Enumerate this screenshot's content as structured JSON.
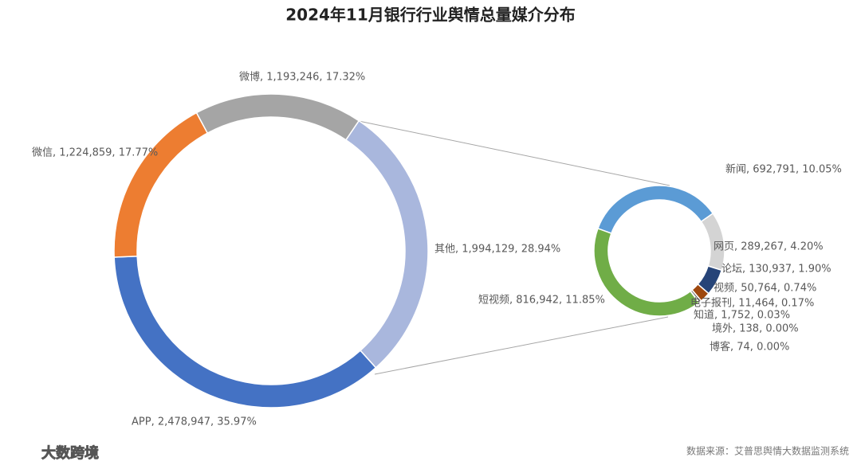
{
  "chart_data": [
    {
      "type": "donut",
      "title": "2024年11月银行行业舆情总量媒介分布",
      "labels": [
        "其他, 1,994,129, 28.94%",
        "APP, 2,478,947, 35.97%",
        "微信, 1,224,859, 17.77%",
        "微博, 1,193,246, 17.32%"
      ],
      "values": [
        1994129,
        2478947,
        1224859,
        1193246
      ],
      "percents": [
        28.94,
        35.97,
        17.77,
        17.32
      ],
      "colors": [
        "#a9b7dd",
        "#4472c4",
        "#ed7d31",
        "#a5a5a5"
      ]
    },
    {
      "type": "donut",
      "labels": [
        "新闻, 692,791, 10.05%",
        "网页, 289,267, 4.20%",
        "论坛, 130,937, 1.90%",
        "视频, 50,764, 0.74%",
        "电子报刊, 11,464, 0.17%",
        "知道, 1,752, 0.03%",
        "境外, 138, 0.00%",
        "博客, 74, 0.00%",
        "短视频, 816,942, 11.85%"
      ],
      "values": [
        692791,
        289267,
        130937,
        50764,
        11464,
        1752,
        138,
        74,
        816942
      ],
      "percents": [
        10.05,
        4.2,
        1.9,
        0.74,
        0.17,
        0.03,
        0,
        0,
        11.85
      ],
      "colors": [
        "#5b9bd5",
        "#d4d4d4",
        "#264478",
        "#9e480e",
        "#636363",
        "#997300",
        "#255e91",
        "#43682b",
        "#70ad47"
      ]
    }
  ],
  "source": "数据来源：艾普思舆情大数据监测系统",
  "watermark": "大数跨境"
}
